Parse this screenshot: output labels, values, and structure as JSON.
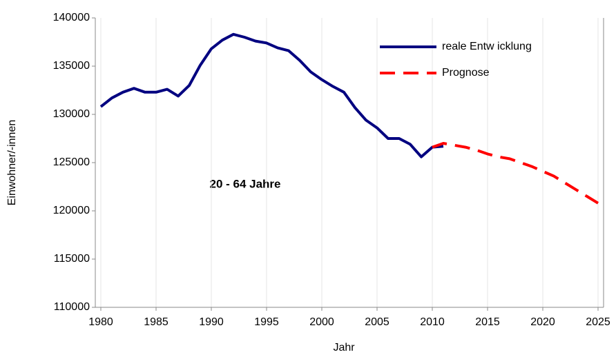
{
  "chart_data": {
    "type": "line",
    "annotation": "20 - 64 Jahre",
    "xlabel": "Jahr",
    "ylabel": "Einwohner/-innen",
    "xlim": [
      1979.5,
      2025.5
    ],
    "xticks": [
      1980,
      1985,
      1990,
      1995,
      2000,
      2005,
      2010,
      2015,
      2020,
      2025
    ],
    "ylim": [
      110000,
      140000
    ],
    "yticks": [
      110000,
      115000,
      120000,
      125000,
      130000,
      135000,
      140000
    ],
    "grid": true,
    "legend": "upper right",
    "series": [
      {
        "name": "reale Entw icklung",
        "color": "#000080",
        "dash": false,
        "x": [
          1980,
          1981,
          1982,
          1983,
          1984,
          1985,
          1986,
          1987,
          1988,
          1989,
          1990,
          1991,
          1992,
          1993,
          1994,
          1995,
          1996,
          1997,
          1998,
          1999,
          2000,
          2001,
          2002,
          2003,
          2004,
          2005,
          2006,
          2007,
          2008,
          2009,
          2010,
          2011
        ],
        "values": [
          130800,
          131700,
          132300,
          132700,
          132300,
          132300,
          132600,
          131900,
          133000,
          135100,
          136800,
          137700,
          138300,
          138000,
          137600,
          137400,
          136900,
          136600,
          135600,
          134400,
          133600,
          132900,
          132300,
          130700,
          129400,
          128600,
          127500,
          127500,
          126900,
          125600,
          126600,
          126700
        ]
      },
      {
        "name": "Prognose",
        "color": "#ff0000",
        "dash": true,
        "x": [
          2010,
          2011,
          2012,
          2013,
          2014,
          2015,
          2016,
          2017,
          2018,
          2019,
          2020,
          2021,
          2022,
          2023,
          2024,
          2025
        ],
        "values": [
          126600,
          127000,
          126800,
          126600,
          126300,
          125900,
          125600,
          125400,
          125000,
          124600,
          124100,
          123600,
          122900,
          122200,
          121500,
          120800
        ]
      }
    ]
  }
}
